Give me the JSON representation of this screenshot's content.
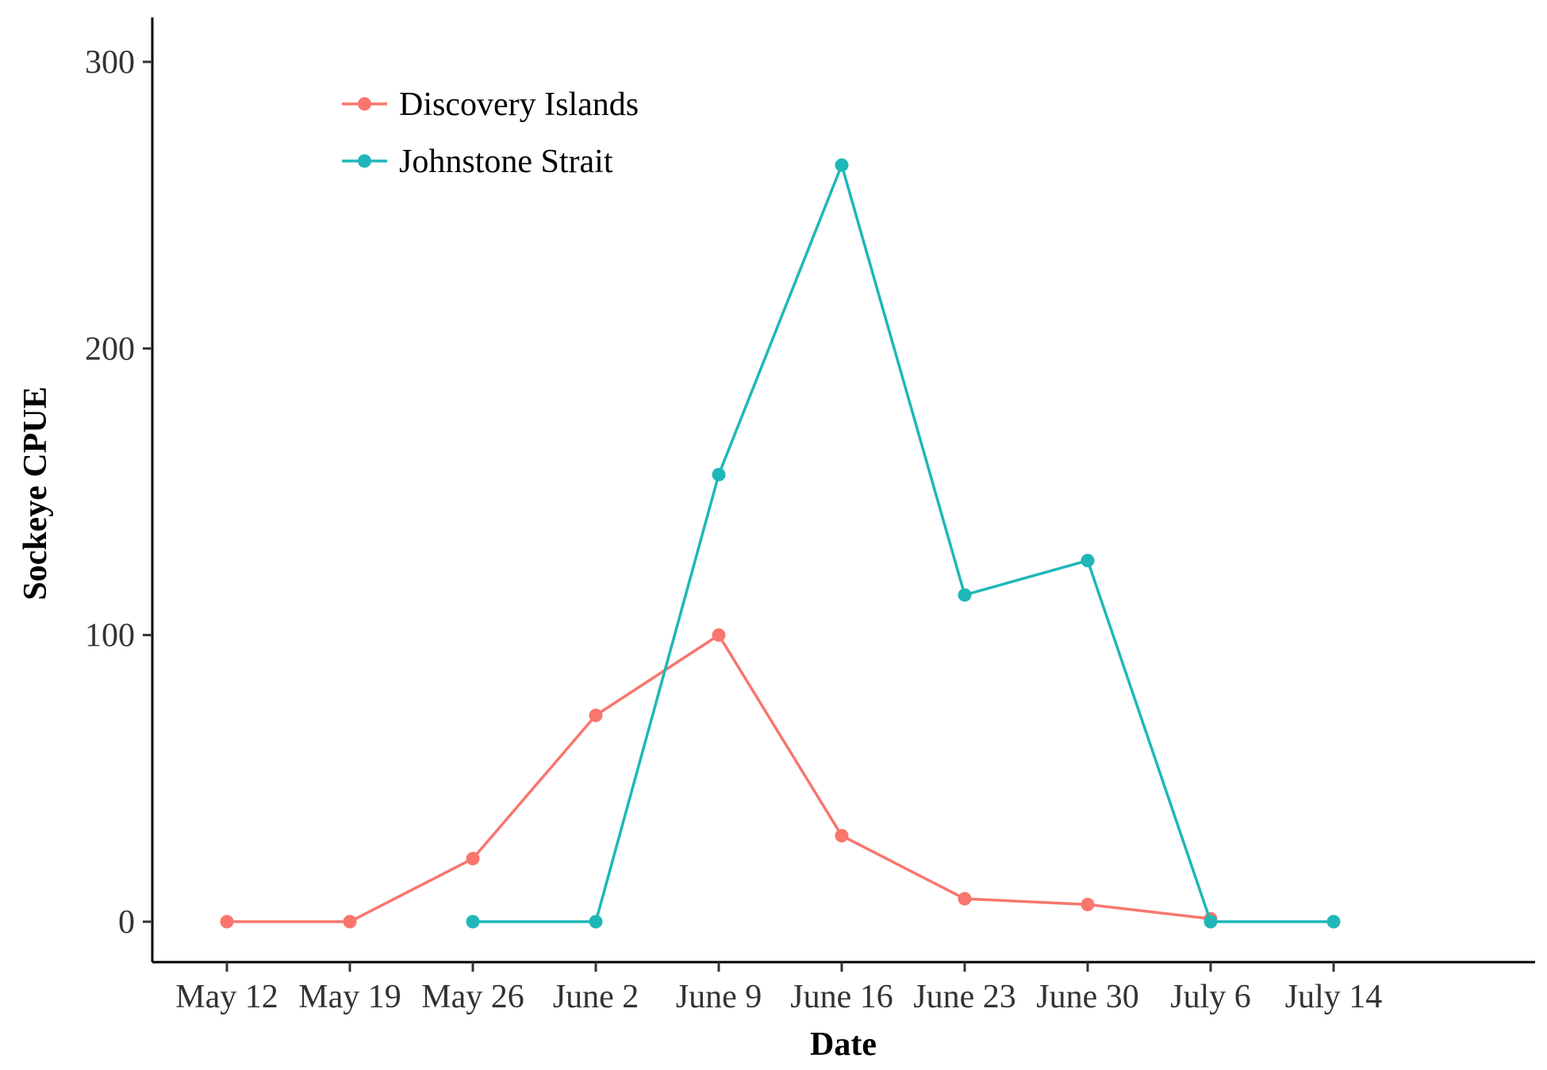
{
  "chart_data": {
    "type": "line",
    "title": "",
    "xlabel": "Date",
    "ylabel": "Sockeye CPUE",
    "categories": [
      "May 12",
      "May 19",
      "May 26",
      "June 2",
      "June 9",
      "June 16",
      "June 23",
      "June 30",
      "July 6",
      "July 14"
    ],
    "yticks": [
      0,
      100,
      200,
      300
    ],
    "ylim": [
      -14,
      315
    ],
    "grid": false,
    "legend": "top-left",
    "series": [
      {
        "name": "Discovery Islands",
        "color": "#F8766D",
        "values": [
          0,
          0,
          22,
          72,
          100,
          30,
          8,
          6,
          1,
          null
        ]
      },
      {
        "name": "Johnstone Strait",
        "color": "#1FB7B8",
        "values": [
          null,
          null,
          0,
          0,
          156,
          264,
          114,
          126,
          0,
          0
        ]
      }
    ]
  }
}
